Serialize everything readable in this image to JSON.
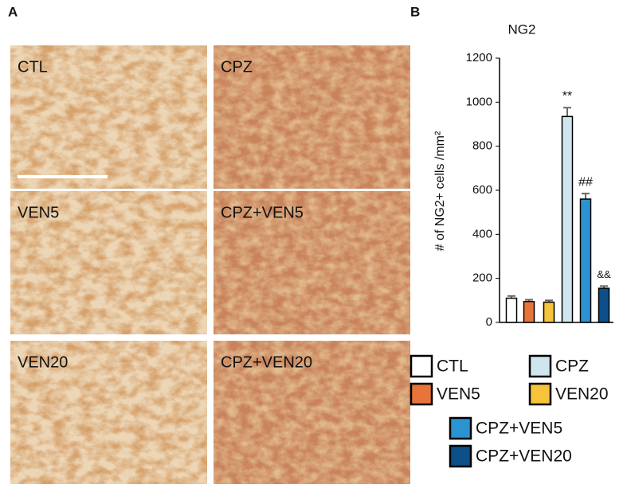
{
  "panel_labels": [
    "A",
    "B"
  ],
  "images": [
    "CTL",
    "CPZ",
    "VEN5",
    "CPZ+VEN5",
    "VEN20",
    "CPZ+VEN20"
  ],
  "chart_data": {
    "type": "bar",
    "title": "NG2",
    "y_label": "# of NG2+ cells /mm²",
    "categories": [
      "CTL",
      "VEN5",
      "VEN20",
      "CPZ",
      "CPZ+VEN5",
      "CPZ+VEN20"
    ],
    "values": [
      110,
      95,
      92,
      935,
      560,
      155
    ],
    "errors": [
      10,
      8,
      8,
      40,
      25,
      10
    ],
    "colors": [
      "#ffffff",
      "#e8743a",
      "#f7c23c",
      "#cfe6ee",
      "#2b93d1",
      "#0d4f88"
    ],
    "annotations": [
      null,
      null,
      null,
      "**",
      "##",
      "&&"
    ],
    "ylim": [
      0,
      1200
    ],
    "yticks": [
      0,
      200,
      400,
      600,
      800,
      1000,
      1200
    ],
    "grid": false
  }
}
